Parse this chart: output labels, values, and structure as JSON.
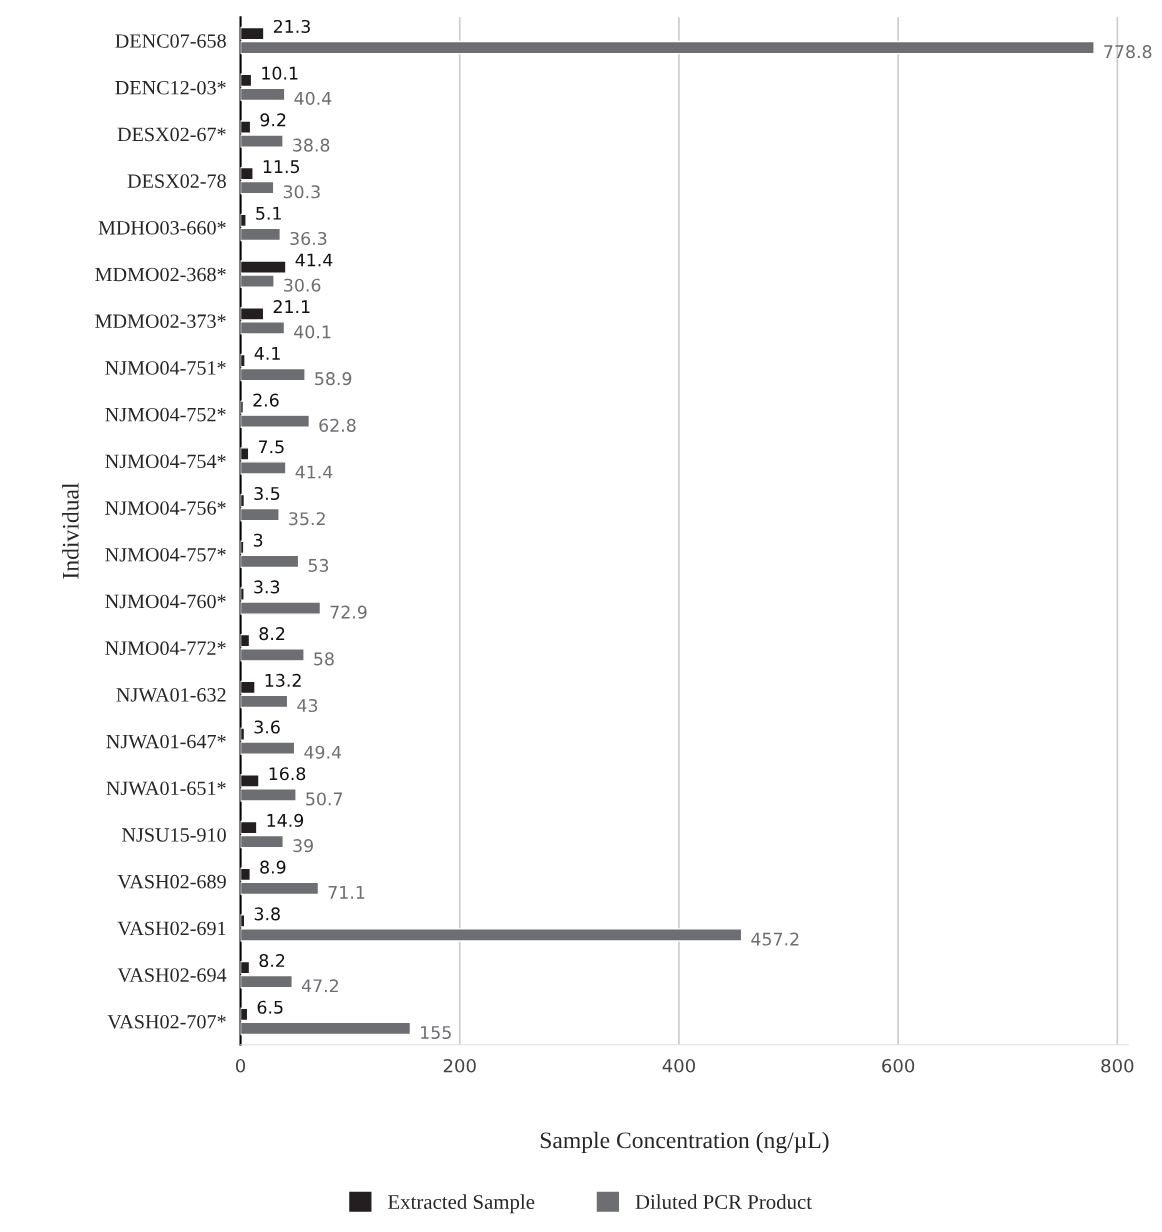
{
  "chart_data": {
    "type": "bar",
    "orientation": "horizontal",
    "xlabel": "Sample Concentration (ng/µL)",
    "ylabel": "Individual",
    "categories": [
      "DENC07-658",
      "DENC12-03*",
      "DESX02-67*",
      "DESX02-78",
      "MDHO03-660*",
      "MDMO02-368*",
      "MDMO02-373*",
      "NJMO04-751*",
      "NJMO04-752*",
      "NJMO04-754*",
      "NJMO04-756*",
      "NJMO04-757*",
      "NJMO04-760*",
      "NJMO04-772*",
      "NJWA01-632",
      "NJWA01-647*",
      "NJWA01-651*",
      "NJSU15-910",
      "VASH02-689",
      "VASH02-691",
      "VASH02-694",
      "VASH02-707*"
    ],
    "series": [
      {
        "name": "Extracted Sample",
        "color": "#231f20",
        "values": [
          21.3,
          10.1,
          9.2,
          11.5,
          5.1,
          41.4,
          21.1,
          4.1,
          2.6,
          7.5,
          3.5,
          3,
          3.3,
          8.2,
          13.2,
          3.6,
          16.8,
          14.9,
          8.9,
          3.8,
          8.2,
          6.5
        ]
      },
      {
        "name": "Diluted PCR Product",
        "color": "#6d6e71",
        "values": [
          778.8,
          40.4,
          38.8,
          30.3,
          36.3,
          30.6,
          40.1,
          58.9,
          62.8,
          41.4,
          35.2,
          53,
          72.9,
          58,
          43,
          49.4,
          50.7,
          39,
          71.1,
          457.2,
          47.2,
          155
        ]
      }
    ],
    "xlim": [
      0,
      810
    ],
    "xticks": [
      0,
      200,
      400,
      600,
      800
    ],
    "grid": "x",
    "legend": "bottom",
    "data_labels": true
  }
}
